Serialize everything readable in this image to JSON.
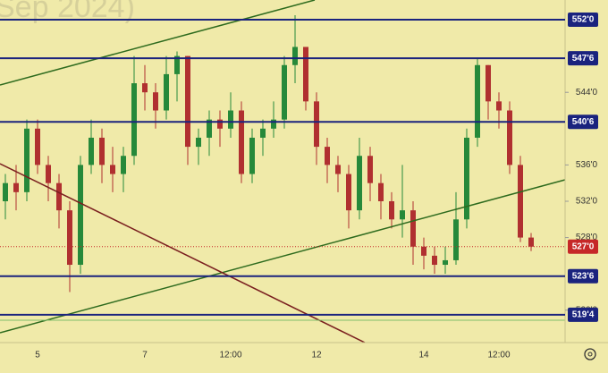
{
  "chart_data": {
    "type": "candlestick",
    "title": "Sep 2024)",
    "categories": [
      null,
      null,
      null,
      "5",
      null,
      null,
      null,
      null,
      null,
      null,
      null,
      null,
      null,
      "7",
      null,
      null,
      null,
      null,
      null,
      null,
      null,
      "12:00",
      null,
      null,
      null,
      null,
      null,
      null,
      null,
      "12",
      null,
      null,
      null,
      null,
      null,
      null,
      null,
      null,
      null,
      "14",
      null,
      null,
      null,
      null,
      null,
      null,
      "12:00",
      null,
      null,
      null
    ],
    "open": [
      532,
      534,
      533,
      540,
      536,
      534,
      531,
      525,
      536,
      539,
      536,
      535,
      537,
      545,
      544,
      542,
      546,
      548,
      538,
      539,
      541,
      540,
      542,
      535,
      539,
      540,
      541,
      547,
      549,
      543,
      538,
      536,
      535,
      531,
      537,
      534,
      532,
      530,
      531,
      527,
      526,
      525,
      525.5,
      530,
      539,
      547,
      543,
      542,
      536,
      528
    ],
    "high": [
      535,
      536,
      541,
      541,
      537,
      535,
      532,
      537,
      541,
      540,
      538,
      538,
      548,
      547,
      545,
      548,
      548.5,
      548,
      540,
      542,
      542,
      544,
      543,
      540,
      541,
      543,
      548,
      552.5,
      549,
      544,
      539,
      537,
      536,
      539,
      538,
      535,
      533,
      536,
      532,
      528,
      527,
      527,
      533,
      540,
      547.75,
      547,
      544,
      543,
      537,
      528.5
    ],
    "low": [
      530,
      531,
      532,
      535,
      532,
      529,
      522,
      524,
      535,
      534,
      533,
      533,
      536,
      542,
      540,
      541,
      543,
      536,
      536,
      537,
      538,
      539,
      534,
      534,
      537,
      539,
      540,
      545,
      542,
      536,
      534,
      533,
      529,
      530,
      532,
      530,
      529,
      528,
      525,
      524.5,
      524,
      524,
      525,
      529,
      538,
      541,
      540,
      535,
      527.5,
      526.5
    ],
    "close": [
      534,
      533,
      540,
      536,
      534,
      531,
      525,
      536,
      539,
      536,
      535,
      537,
      545,
      544,
      542,
      546,
      548,
      538,
      539,
      541,
      540,
      542,
      535,
      539,
      540,
      541,
      547,
      549,
      543,
      538,
      536,
      535,
      531,
      537,
      534,
      532,
      530,
      531,
      527,
      526,
      525,
      525.5,
      530,
      539,
      547,
      543,
      542,
      536,
      528,
      527
    ],
    "up_color": "#26893a",
    "down_color": "#b03030",
    "ylim": [
      516.43,
      554.17
    ],
    "yticks": [
      {
        "value": 544,
        "label": "544'0"
      },
      {
        "value": 536,
        "label": "536'0"
      },
      {
        "value": 532,
        "label": "532'0"
      },
      {
        "value": 528,
        "label": "528'0"
      },
      {
        "value": 520,
        "label": "520'0"
      }
    ],
    "price_lines": [
      {
        "value": 552,
        "label": "552'0"
      },
      {
        "value": 547.75,
        "label": "547'6"
      },
      {
        "value": 540.75,
        "label": "540'6"
      },
      {
        "value": 523.75,
        "label": "523'6"
      },
      {
        "value": 519.5,
        "label": "519'4"
      }
    ],
    "price_line_color": "#1a237e",
    "current_price": {
      "value": 527,
      "label": "527'0"
    },
    "current_color": "#c62828"
  }
}
